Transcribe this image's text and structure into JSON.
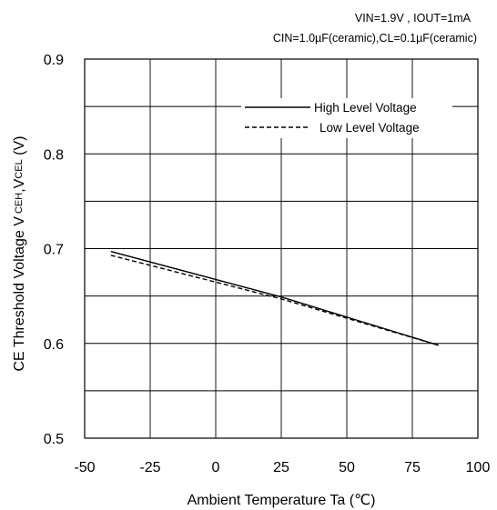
{
  "chart_data": {
    "type": "line",
    "conditions": [
      "VIN=1.9V , IOUT=1mA",
      "CIN=1.0µF(ceramic),CL=0.1µF(ceramic)"
    ],
    "xlabel": "Ambient Temperature Ta (℃)",
    "ylabel": {
      "prefix": "CE Threshold Voltage V",
      "sub1": "CEH",
      "mid": ",V",
      "sub2": "CEL",
      "suffix": " (V)"
    },
    "xlim": [
      -50,
      100
    ],
    "ylim": [
      0.5,
      0.9
    ],
    "xticks": [
      -50,
      -25,
      0,
      25,
      50,
      75,
      100
    ],
    "xtick_labels": [
      "-50",
      "-25",
      "0",
      "25",
      "50",
      "75",
      "100"
    ],
    "yticks": [
      0.5,
      0.6,
      0.7,
      0.8,
      0.9
    ],
    "ytick_labels": [
      "0.5",
      "0.6",
      "0.7",
      "0.8",
      "0.9"
    ],
    "grid_x": [
      -50,
      -25,
      0,
      25,
      50,
      75,
      100
    ],
    "grid_y": [
      0.5,
      0.55,
      0.6,
      0.65,
      0.7,
      0.75,
      0.8,
      0.85,
      0.9
    ],
    "grid": true,
    "legend_position": "top-right",
    "series": [
      {
        "name": "High Level Voltage",
        "style": "solid",
        "color": "#000000",
        "x": [
          -40,
          25,
          85
        ],
        "y": [
          0.697,
          0.649,
          0.598
        ]
      },
      {
        "name": "Low Level Voltage",
        "style": "dashed",
        "color": "#000000",
        "x": [
          -40,
          25,
          85
        ],
        "y": [
          0.693,
          0.647,
          0.598
        ]
      }
    ]
  }
}
